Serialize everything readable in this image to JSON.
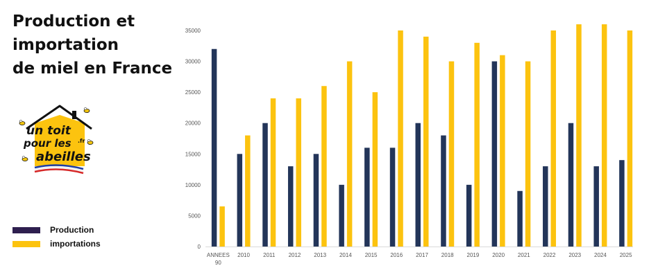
{
  "title_lines": [
    "Production et",
    "importation",
    "de miel en France"
  ],
  "logo": {
    "text_line1": "un toit",
    "text_line2": "pour les",
    "text_line3": "abeilles",
    "text_tld": ".fr"
  },
  "legend": {
    "items": [
      {
        "label": "Production",
        "color": "#2e1f4f"
      },
      {
        "label": "importations",
        "color": "#fcc30f"
      }
    ],
    "placement": "bottom-left"
  },
  "chart_data": {
    "type": "bar",
    "categories": [
      "ANNEES 90",
      "2010",
      "2011",
      "2012",
      "2013",
      "2014",
      "2015",
      "2016",
      "2017",
      "2018",
      "2019",
      "2020",
      "2021",
      "2022",
      "2023",
      "2024",
      "2025"
    ],
    "category_lines": [
      [
        "ANNEES",
        "90"
      ],
      [
        "2010"
      ],
      [
        "2011"
      ],
      [
        "2012"
      ],
      [
        "2013"
      ],
      [
        "2014"
      ],
      [
        "2015"
      ],
      [
        "2016"
      ],
      [
        "2017"
      ],
      [
        "2018"
      ],
      [
        "2019"
      ],
      [
        "2020"
      ],
      [
        "2021"
      ],
      [
        "2022"
      ],
      [
        "2023"
      ],
      [
        "2024"
      ],
      [
        "2025"
      ]
    ],
    "series": [
      {
        "name": "Production",
        "color": "#233559",
        "values": [
          32000,
          15000,
          20000,
          13000,
          15000,
          10000,
          16000,
          16000,
          20000,
          18000,
          10000,
          30000,
          9000,
          13000,
          20000,
          13000,
          14000
        ]
      },
      {
        "name": "importations",
        "color": "#fcc30f",
        "values": [
          6500,
          18000,
          24000,
          24000,
          26000,
          30000,
          25000,
          35000,
          34000,
          30000,
          33000,
          31000,
          30000,
          35000,
          36000,
          36000,
          35000
        ]
      }
    ],
    "yticks": [
      0,
      5000,
      10000,
      15000,
      20000,
      25000,
      30000,
      35000
    ],
    "ylim": [
      0,
      35000
    ],
    "grid": false
  }
}
